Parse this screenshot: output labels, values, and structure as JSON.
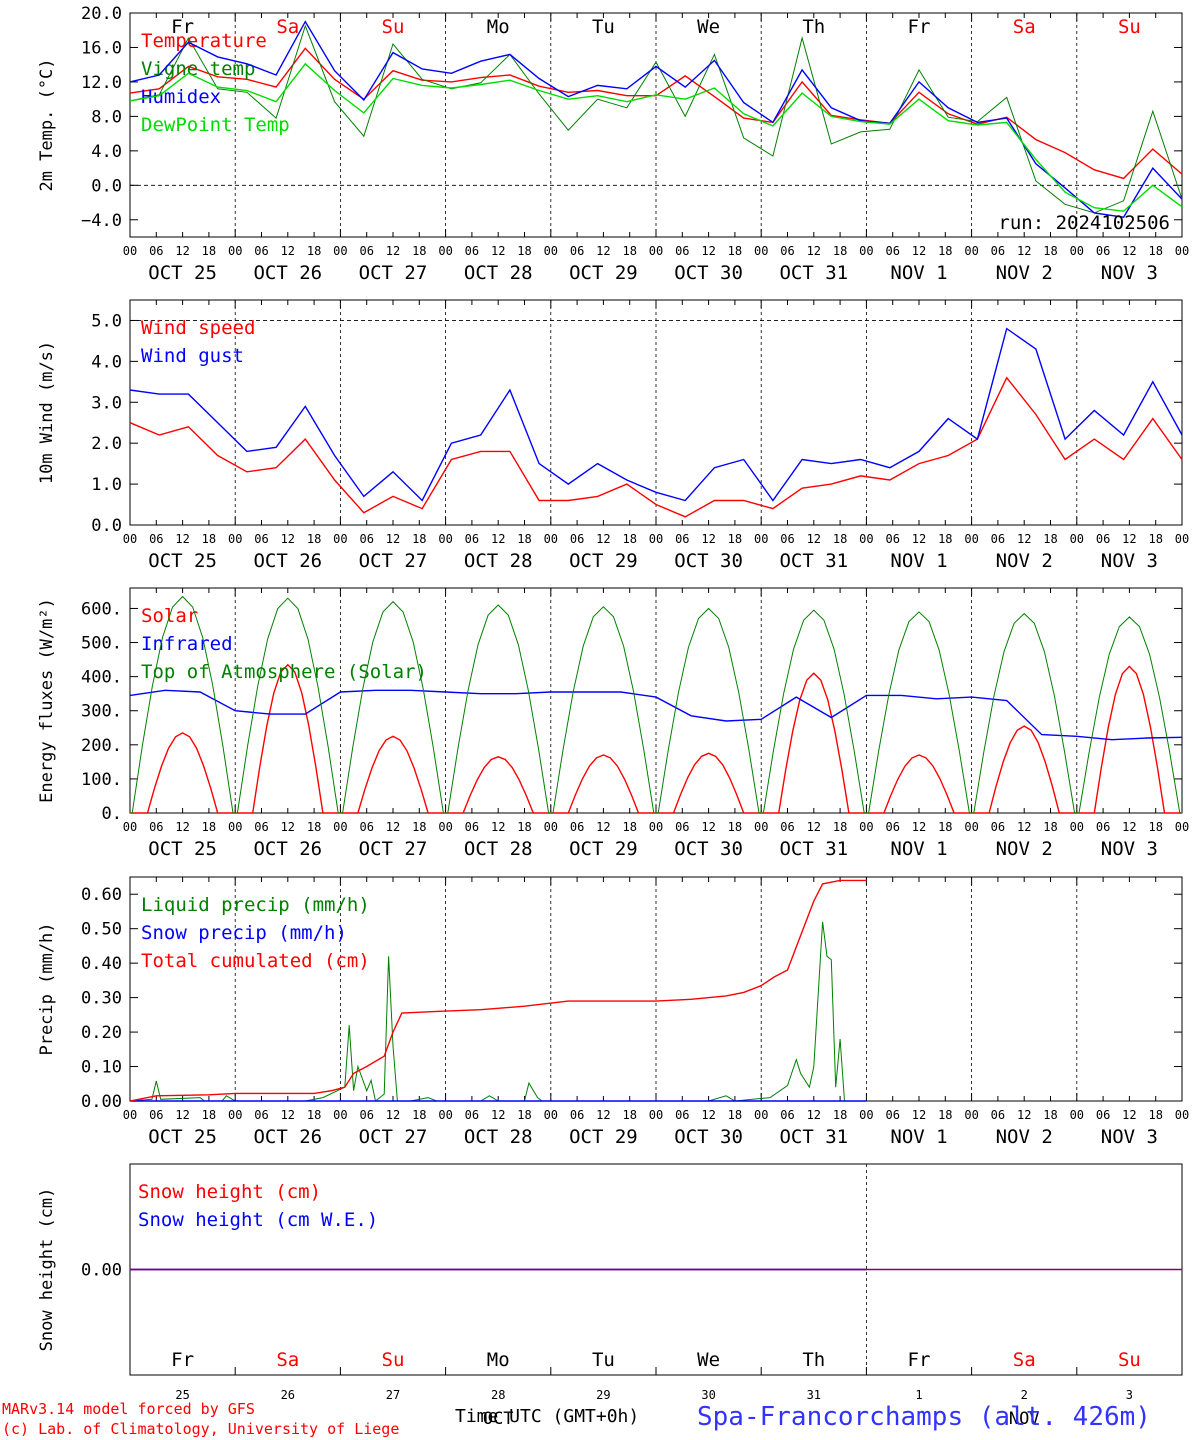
{
  "footer": {
    "model_credit": "MARv3.14 model forced by GFS",
    "lab_credit": "(c) Lab. of Climatology, University of Liege",
    "axis_title": "Time UTC (GMT+0h)",
    "station": "Spa-Francorchamps (alt. 426m)",
    "bottom_month_left": "OCT",
    "bottom_month_right": "NOV"
  },
  "colors": {
    "red": "#ff0000",
    "green": "#008000",
    "blue": "#0000ff",
    "lime": "#00dd00",
    "purple": "#800080",
    "weekend": "#ff0000",
    "weekday": "#000000"
  },
  "days": [
    "Fr",
    "Sa",
    "Su",
    "Mo",
    "Tu",
    "We",
    "Th",
    "Fr",
    "Sa",
    "Su"
  ],
  "weekend_flags": [
    false,
    true,
    true,
    false,
    false,
    false,
    false,
    false,
    true,
    true
  ],
  "date_labels": [
    "OCT 25",
    "OCT 26",
    "OCT 27",
    "OCT 28",
    "OCT 29",
    "OCT 30",
    "OCT 31",
    "NOV  1",
    "NOV  2",
    "NOV  3"
  ],
  "bottom_day_numbers": [
    "25",
    "26",
    "27",
    "28",
    "29",
    "30",
    "31",
    "1",
    "2",
    "3"
  ],
  "hour_ticks": [
    "00",
    "06",
    "12",
    "18"
  ],
  "chart_data": [
    {
      "type": "line",
      "ylabel": "2m Temp. (°C)",
      "ylim": [
        -6,
        20
      ],
      "yticks": [
        "20.0",
        "16.0",
        "12.0",
        "8.0",
        "4.0",
        "0.0",
        "−4.0"
      ],
      "annotation": "run: 2024102506",
      "x_step_hours": 12,
      "x_start": "OCT 25 00",
      "series": [
        {
          "name": "Temperature",
          "color": "red",
          "values": [
            10.7,
            11.2,
            13.8,
            12.6,
            12.3,
            11.4,
            15.9,
            12.3,
            10.0,
            13.3,
            12.2,
            12.0,
            12.5,
            12.8,
            11.5,
            10.8,
            11.0,
            10.4,
            10.4,
            12.7,
            10.3,
            7.8,
            7.3,
            12.0,
            8.1,
            7.6,
            7.2,
            10.8,
            8.3,
            7.1,
            7.9,
            5.3,
            3.8,
            1.8,
            0.8,
            4.2,
            1.3
          ]
        },
        {
          "name": "Vigne temp",
          "color": "green",
          "values": [
            9.8,
            10.5,
            17.1,
            11.2,
            10.8,
            7.8,
            18.5,
            9.7,
            5.7,
            16.4,
            12.3,
            11.2,
            11.9,
            15.2,
            10.6,
            6.4,
            10.0,
            9.0,
            14.3,
            8.0,
            15.2,
            5.5,
            3.4,
            17.1,
            4.8,
            6.2,
            6.5,
            13.4,
            7.9,
            7.4,
            10.2,
            0.5,
            -2.2,
            -3.2,
            -1.8,
            8.6,
            -1.6
          ]
        },
        {
          "name": "Humidex",
          "color": "blue",
          "values": [
            12.0,
            12.8,
            16.6,
            14.9,
            14.1,
            12.8,
            19.0,
            13.3,
            9.9,
            15.4,
            13.5,
            13.0,
            14.4,
            15.2,
            12.4,
            10.3,
            11.6,
            11.2,
            13.8,
            11.4,
            14.5,
            9.6,
            7.3,
            13.4,
            9.0,
            7.5,
            7.2,
            12.0,
            9.0,
            7.3,
            7.8,
            2.5,
            -0.3,
            -3.2,
            -3.7,
            2.0,
            -1.6
          ]
        },
        {
          "name": "DewPoint Temp",
          "color": "lime",
          "values": [
            9.8,
            10.4,
            13.0,
            11.4,
            11.0,
            9.7,
            14.1,
            11.0,
            8.4,
            12.4,
            11.6,
            11.3,
            11.7,
            12.2,
            11.0,
            10.0,
            10.4,
            9.7,
            10.5,
            10.0,
            11.3,
            8.3,
            6.9,
            10.7,
            8.0,
            7.4,
            7.1,
            10.0,
            7.5,
            7.0,
            7.3,
            3.0,
            -0.8,
            -2.6,
            -3.0,
            0.0,
            -2.5
          ]
        }
      ]
    },
    {
      "type": "line",
      "ylabel": "10m Wind (m/s)",
      "ylim": [
        0,
        5.5
      ],
      "yticks": [
        "5.0",
        "4.0",
        "3.0",
        "2.0",
        "1.0",
        "0.0"
      ],
      "x_step_hours": 12,
      "x_start": "OCT 25 00",
      "series": [
        {
          "name": "Wind speed",
          "color": "red",
          "values": [
            2.5,
            2.2,
            2.4,
            1.7,
            1.3,
            1.4,
            2.1,
            1.1,
            0.3,
            0.7,
            0.4,
            1.6,
            1.8,
            1.8,
            0.6,
            0.6,
            0.7,
            1.0,
            0.5,
            0.2,
            0.6,
            0.6,
            0.4,
            0.9,
            1.0,
            1.2,
            1.1,
            1.5,
            1.7,
            2.1,
            3.6,
            2.7,
            1.6,
            2.1,
            1.6,
            2.6,
            1.6
          ]
        },
        {
          "name": "Wind gust",
          "color": "blue",
          "values": [
            3.3,
            3.2,
            3.2,
            2.5,
            1.8,
            1.9,
            2.9,
            1.7,
            0.7,
            1.3,
            0.6,
            2.0,
            2.2,
            3.3,
            1.5,
            1.0,
            1.5,
            1.1,
            0.8,
            0.6,
            1.4,
            1.6,
            0.6,
            1.6,
            1.5,
            1.6,
            1.4,
            1.8,
            2.6,
            2.1,
            4.8,
            4.3,
            2.1,
            2.8,
            2.2,
            3.5,
            2.2
          ]
        }
      ]
    },
    {
      "type": "line",
      "ylabel": "Energy fluxes (W/m²)",
      "ylim": [
        0,
        660
      ],
      "yticks": [
        "600.",
        "500.",
        "400.",
        "300.",
        "200.",
        "100.",
        "0."
      ],
      "x_step_hours": 12,
      "x_start": "OCT 25 00",
      "series": [
        {
          "name": "Solar",
          "color": "red",
          "peak_time_hour": 12,
          "daily_peak": [
            235,
            435,
            225,
            165,
            170,
            175,
            410,
            170,
            255,
            430
          ]
        },
        {
          "name": "Infrared",
          "color": "blue",
          "values": [
            345,
            360,
            355,
            300,
            290,
            290,
            355,
            360,
            360,
            355,
            350,
            350,
            355,
            355,
            355,
            340,
            285,
            270,
            275,
            340,
            280,
            345,
            345,
            335,
            340,
            330,
            230,
            225,
            215,
            220,
            222
          ]
        },
        {
          "name": "Top of Atmosphere (Solar)",
          "color": "green",
          "peak_time_hour": 12,
          "daily_peak": [
            635,
            630,
            620,
            610,
            605,
            600,
            595,
            590,
            585,
            575
          ]
        }
      ]
    },
    {
      "type": "line",
      "ylabel": "Precip (mm/h)",
      "ylim": [
        0,
        0.65
      ],
      "yticks": [
        "0.60",
        "0.50",
        "0.40",
        "0.30",
        "0.20",
        "0.10",
        "0.00"
      ],
      "x_step_hours": 6,
      "x_start": "OCT 25 00",
      "series": [
        {
          "name": "Liquid precip (mm/h)",
          "color": "green",
          "points": [
            [
              0,
              0.0
            ],
            [
              5,
              0.005
            ],
            [
              6,
              0.058
            ],
            [
              7,
              0.005
            ],
            [
              16,
              0.01
            ],
            [
              17,
              0.0
            ],
            [
              21,
              0.0
            ],
            [
              22,
              0.015
            ],
            [
              24,
              0.0
            ],
            [
              40,
              0.0
            ],
            [
              44,
              0.01
            ],
            [
              49,
              0.04
            ],
            [
              50,
              0.22
            ],
            [
              51,
              0.03
            ],
            [
              52,
              0.1
            ],
            [
              54,
              0.03
            ],
            [
              55,
              0.06
            ],
            [
              56,
              0.0
            ],
            [
              58,
              0.02
            ],
            [
              59,
              0.42
            ],
            [
              60,
              0.16
            ],
            [
              61,
              0.0
            ],
            [
              64,
              0.0
            ],
            [
              68,
              0.01
            ],
            [
              70,
              0.0
            ],
            [
              80,
              0.0
            ],
            [
              82,
              0.015
            ],
            [
              84,
              0.0
            ],
            [
              90,
              0.0
            ],
            [
              91,
              0.052
            ],
            [
              93,
              0.01
            ],
            [
              94,
              0.0
            ],
            [
              132,
              0.0
            ],
            [
              136,
              0.015
            ],
            [
              138,
              0.0
            ],
            [
              146,
              0.01
            ],
            [
              150,
              0.045
            ],
            [
              152,
              0.12
            ],
            [
              153,
              0.08
            ],
            [
              155,
              0.04
            ],
            [
              156,
              0.1
            ],
            [
              158,
              0.52
            ],
            [
              159,
              0.42
            ],
            [
              160,
              0.41
            ],
            [
              161,
              0.04
            ],
            [
              162,
              0.18
            ],
            [
              163,
              0.0
            ],
            [
              168,
              0.0
            ]
          ]
        },
        {
          "name": "Snow precip (mm/h)",
          "color": "blue",
          "points": [
            [
              0,
              0
            ],
            [
              168,
              0
            ]
          ]
        },
        {
          "name": "Total cumulated (cm)",
          "color": "red",
          "points": [
            [
              0,
              0.0
            ],
            [
              6,
              0.015
            ],
            [
              18,
              0.018
            ],
            [
              24,
              0.022
            ],
            [
              36,
              0.022
            ],
            [
              42,
              0.022
            ],
            [
              46,
              0.03
            ],
            [
              49,
              0.04
            ],
            [
              51,
              0.08
            ],
            [
              54,
              0.1
            ],
            [
              58,
              0.13
            ],
            [
              60,
              0.2
            ],
            [
              62,
              0.255
            ],
            [
              70,
              0.26
            ],
            [
              80,
              0.265
            ],
            [
              90,
              0.275
            ],
            [
              100,
              0.29
            ],
            [
              120,
              0.29
            ],
            [
              128,
              0.295
            ],
            [
              136,
              0.305
            ],
            [
              140,
              0.315
            ],
            [
              144,
              0.335
            ],
            [
              147,
              0.36
            ],
            [
              150,
              0.38
            ],
            [
              153,
              0.48
            ],
            [
              156,
              0.58
            ],
            [
              158,
              0.63
            ],
            [
              162,
              0.64
            ],
            [
              168,
              0.64
            ]
          ]
        }
      ]
    },
    {
      "type": "line",
      "ylabel": "Snow height (cm)",
      "ylim": [
        -1,
        1
      ],
      "yticks": [
        "0.00"
      ],
      "series": [
        {
          "name": "Snow height (cm)",
          "color": "red",
          "points": [
            [
              0,
              0
            ],
            [
              168,
              0
            ]
          ]
        },
        {
          "name": "Snow height (cm W.E.)",
          "color": "blue",
          "points": [
            [
              0,
              0
            ],
            [
              168,
              0
            ]
          ]
        }
      ]
    }
  ]
}
